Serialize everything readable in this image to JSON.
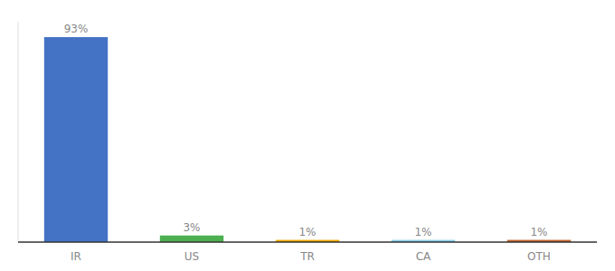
{
  "chart_data": {
    "type": "bar",
    "categories": [
      "IR",
      "US",
      "TR",
      "CA",
      "OTH"
    ],
    "values": [
      93,
      3,
      1,
      1,
      1
    ],
    "value_labels": [
      "93%",
      "3%",
      "1%",
      "1%",
      "1%"
    ],
    "colors": [
      "#4472c4",
      "#4caf50",
      "#f0a500",
      "#87ceeb",
      "#c0622b"
    ],
    "ylim": [
      0,
      100
    ],
    "data_labels": true,
    "tick_labels": "x"
  }
}
